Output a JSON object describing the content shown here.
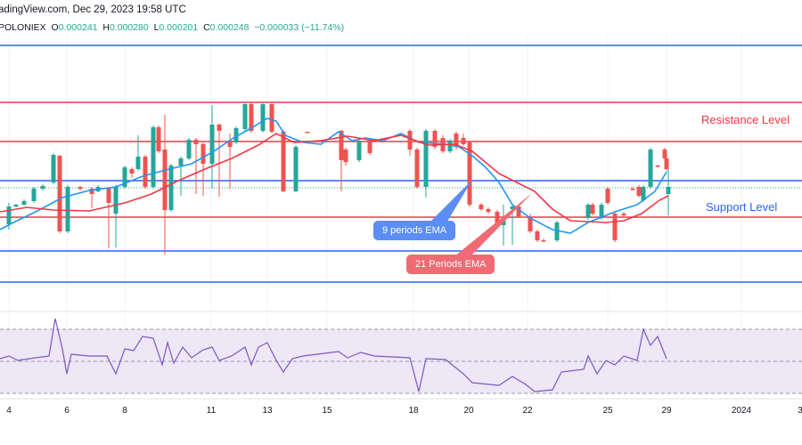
{
  "header": {
    "source_line": "adingView.com, Dec 29, 2023 19:58 UTC",
    "symbol": "POLONIEX",
    "open_label": "O",
    "open": "0.000241",
    "high_label": "H",
    "high": "0.000280",
    "low_label": "L",
    "low": "0.000201",
    "close_label": "C",
    "close": "0.000248",
    "change": "−0.000033 (−11.74%)"
  },
  "annotations": {
    "resistance": "Resistance Level",
    "support": "Support Level",
    "ema9": "9 periods EMA",
    "ema21": "21 Periods EMA"
  },
  "colors": {
    "up": "#26a69a",
    "down": "#ef5350",
    "ema9": "#2196f3",
    "ema21": "#f23645",
    "resistance_line": "#f23645",
    "support_line": "#2962ff",
    "rsi": "#7e57c2",
    "rsi_band": "#ede7f6"
  },
  "x_axis": {
    "ticks": [
      "4",
      "6",
      "8",
      "11",
      "13",
      "15",
      "18",
      "20",
      "22",
      "25",
      "29",
      "2024",
      "3"
    ]
  }
}
